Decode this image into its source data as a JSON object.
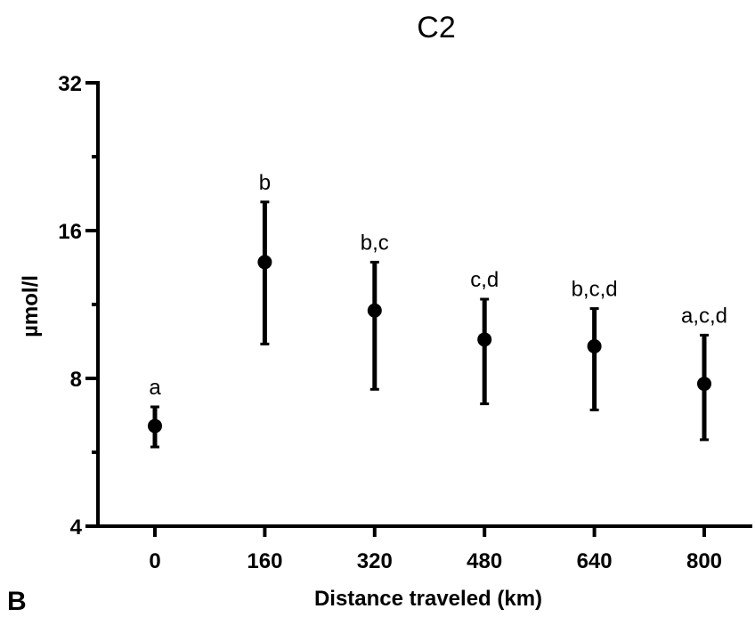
{
  "panel_label": "B",
  "chart_data": {
    "type": "scatter",
    "title": "C2",
    "xlabel": "Distance traveled (km)",
    "ylabel": "µmol/l",
    "y_scale": "log2",
    "ylim": [
      4,
      32
    ],
    "y_ticks": [
      4,
      8,
      16,
      32
    ],
    "y_tick_labels": [
      "4",
      "8",
      "16",
      "32"
    ],
    "categories": [
      "0",
      "160",
      "320",
      "480",
      "640",
      "800"
    ],
    "points": [
      {
        "x": "0",
        "y": 6.4,
        "lower": 5.8,
        "upper": 7.0,
        "label": "a"
      },
      {
        "x": "160",
        "y": 13.8,
        "lower": 9.4,
        "upper": 18.3,
        "label": "b"
      },
      {
        "x": "320",
        "y": 11.0,
        "lower": 7.6,
        "upper": 13.8,
        "label": "b,c"
      },
      {
        "x": "480",
        "y": 9.6,
        "lower": 7.1,
        "upper": 11.6,
        "label": "c,d"
      },
      {
        "x": "640",
        "y": 9.3,
        "lower": 6.9,
        "upper": 11.1,
        "label": "b,c,d"
      },
      {
        "x": "800",
        "y": 7.8,
        "lower": 6.0,
        "upper": 9.8,
        "label": "a,c,d"
      }
    ],
    "marker": "filled-circle",
    "error_bars": true,
    "grid": false,
    "legend": false,
    "colors": {
      "marker": "#000000",
      "axis": "#000000"
    }
  }
}
